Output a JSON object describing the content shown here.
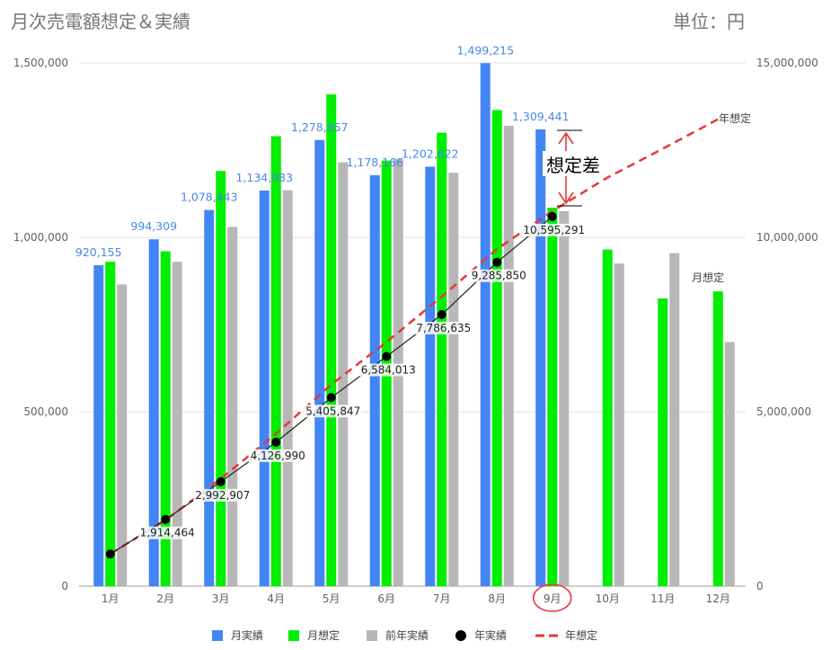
{
  "title": "月次売電額想定＆実績",
  "unit_label": "単位：円",
  "colors": {
    "monthly_actual": "#4285f4",
    "monthly_forecast": "#00ee00",
    "prev_year_actual": "#b7b7b7",
    "annual_actual": "#000000",
    "annual_forecast": "#e53935",
    "actual_label": "#4a86e8",
    "gridline": "#e0e0e0",
    "axis_text": "#616161",
    "highlight": "#e53935"
  },
  "annotations": {
    "gap_label": "想定差",
    "annual_forecast_label": "年想定",
    "monthly_forecast_label": "月想定",
    "highlighted_month": "9月"
  },
  "chart_data": {
    "type": "bar",
    "categories": [
      "1月",
      "2月",
      "3月",
      "4月",
      "5月",
      "6月",
      "7月",
      "8月",
      "9月",
      "10月",
      "11月",
      "12月"
    ],
    "left_axis": {
      "ylim": [
        0,
        1500000
      ],
      "ticks": [
        "0",
        "500,000",
        "1,000,000",
        "1,500,000"
      ]
    },
    "right_axis": {
      "ylim": [
        0,
        15000000
      ],
      "ticks": [
        "0",
        "5,000,000",
        "10,000,000",
        "15,000,000"
      ]
    },
    "grid": true,
    "legend_position": "bottom",
    "series": [
      {
        "name": "月実績",
        "type": "bar",
        "axis": "left",
        "values": [
          920155,
          994309,
          1078443,
          1134083,
          1278857,
          1178166,
          1202622,
          1499215,
          1309441,
          null,
          null,
          null
        ],
        "labels": [
          "920,155",
          "994,309",
          "1,078,443",
          "1,134,083",
          "1,278,857",
          "1,178,166",
          "1,202,622",
          "1,499,215",
          "1,309,441",
          "",
          "",
          ""
        ]
      },
      {
        "name": "月想定",
        "type": "bar",
        "axis": "left",
        "values": [
          930000,
          960000,
          1190000,
          1290000,
          1410000,
          1220000,
          1300000,
          1365000,
          1085000,
          965000,
          825000,
          845000
        ]
      },
      {
        "name": "前年実績",
        "type": "bar",
        "axis": "left",
        "values": [
          865000,
          930000,
          1030000,
          1135000,
          1215000,
          1225000,
          1185000,
          1320000,
          1075000,
          925000,
          955000,
          700000
        ]
      },
      {
        "name": "年実績",
        "type": "line-points",
        "axis": "right",
        "values": [
          920155,
          1914464,
          2992907,
          4126990,
          5405847,
          6584013,
          7786635,
          9285850,
          10595291,
          null,
          null,
          null
        ],
        "labels": [
          "",
          "1,914,464",
          "2,992,907",
          "4,126,990",
          "5,405,847",
          "6,584,013",
          "7,786,635",
          "9,285,850",
          "10,595,291",
          "",
          "",
          ""
        ]
      },
      {
        "name": "年想定",
        "type": "dashed-line",
        "axis": "right",
        "values": [
          930000,
          1890000,
          3080000,
          4370000,
          5780000,
          7000000,
          8300000,
          9665000,
          10750000,
          11715000,
          12540000,
          13385000
        ]
      }
    ]
  }
}
